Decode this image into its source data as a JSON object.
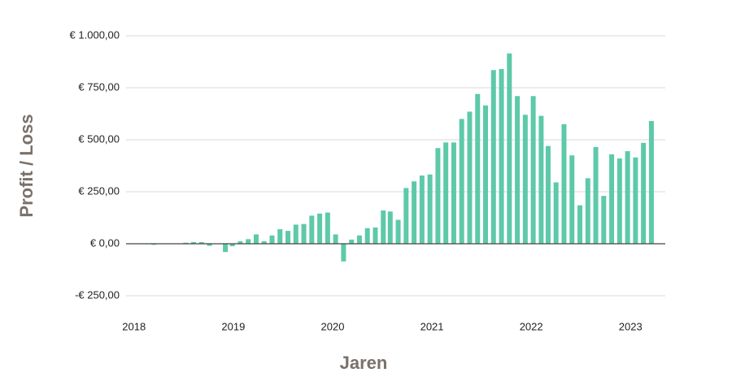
{
  "chart_data": {
    "type": "bar",
    "xlabel": "Jaren",
    "ylabel": "Profit / Loss",
    "color": "#5dc9a9",
    "grid": true,
    "xlim": [
      2017.92,
      2023.35
    ],
    "xticks": [
      2018,
      2019,
      2020,
      2021,
      2022,
      2023
    ],
    "ylim": [
      -250,
      1000
    ],
    "yticks": [
      {
        "value": -250,
        "label": "-€ 250,00"
      },
      {
        "value": 0,
        "label": "€ 0,00"
      },
      {
        "value": 250,
        "label": "€ 250,00"
      },
      {
        "value": 500,
        "label": "€ 500,00"
      },
      {
        "value": 750,
        "label": "€ 750,00"
      },
      {
        "value": 1000,
        "label": "€ 1.000,00"
      }
    ],
    "x": [
      2018.12,
      2018.2,
      2018.28,
      2018.36,
      2018.44,
      2018.52,
      2018.6,
      2018.68,
      2018.76,
      2018.84,
      2018.92,
      2018.99,
      2019.07,
      2019.15,
      2019.23,
      2019.31,
      2019.39,
      2019.47,
      2019.55,
      2019.63,
      2019.71,
      2019.79,
      2019.87,
      2019.95,
      2020.03,
      2020.11,
      2020.19,
      2020.27,
      2020.35,
      2020.43,
      2020.51,
      2020.58,
      2020.66,
      2020.74,
      2020.82,
      2020.9,
      2020.98,
      2021.06,
      2021.14,
      2021.22,
      2021.3,
      2021.38,
      2021.46,
      2021.54,
      2021.62,
      2021.7,
      2021.78,
      2021.86,
      2021.94,
      2022.02,
      2022.1,
      2022.17,
      2022.25,
      2022.33,
      2022.41,
      2022.49,
      2022.57,
      2022.65,
      2022.73,
      2022.81,
      2022.89,
      2022.97,
      2023.05,
      2023.13,
      2023.21
    ],
    "values": [
      2,
      -5,
      2,
      0,
      0,
      5,
      8,
      8,
      -10,
      0,
      -40,
      -12,
      12,
      22,
      45,
      12,
      40,
      70,
      62,
      92,
      95,
      135,
      145,
      150,
      45,
      -85,
      20,
      40,
      75,
      78,
      160,
      155,
      115,
      268,
      300,
      328,
      333,
      460,
      487,
      487,
      600,
      635,
      720,
      665,
      835,
      840,
      915,
      710,
      620,
      710,
      615,
      470,
      295,
      575,
      425,
      185,
      315,
      465,
      230,
      430,
      410,
      445,
      415,
      485,
      590
    ]
  }
}
